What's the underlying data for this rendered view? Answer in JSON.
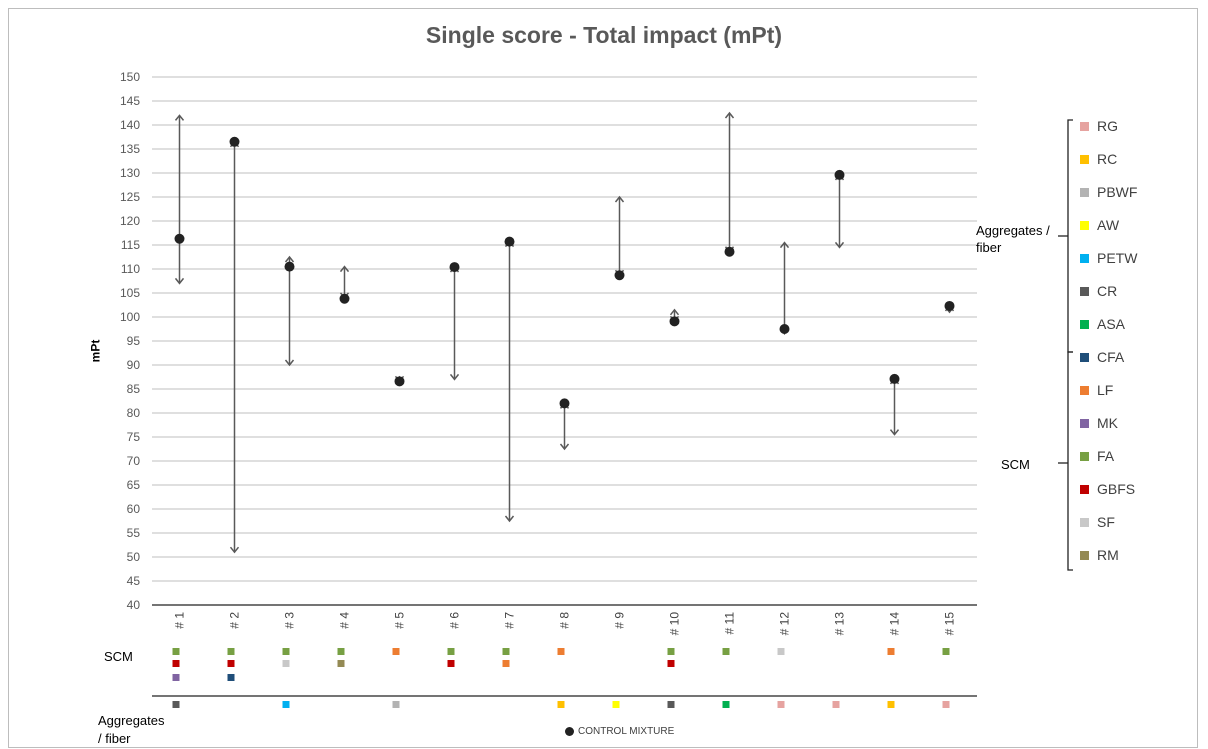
{
  "chart_data": {
    "type": "scatter",
    "title": "Single score - Total impact (mPt)",
    "ylabel": "mPt",
    "xlabel": "",
    "ylim": [
      40,
      150
    ],
    "ytick_step": 5,
    "grid": true,
    "categories": [
      "# 1",
      "# 2",
      "# 3",
      "# 4",
      "# 5",
      "# 6",
      "# 7",
      "# 8",
      "# 9",
      "# 10",
      "# 11",
      "# 12",
      "# 13",
      "# 14",
      "# 15"
    ],
    "control": [
      116.3,
      136.5,
      110.5,
      103.8,
      86.6,
      110.4,
      115.7,
      82.0,
      108.7,
      99.1,
      113.6,
      97.5,
      129.6,
      87.1,
      102.3
    ],
    "ranges": [
      {
        "low": 107,
        "high": 142
      },
      {
        "low": 51,
        "high": 136.5
      },
      {
        "low": 90,
        "high": 112.5
      },
      {
        "low": 104,
        "high": 110.5
      },
      {
        "low": 86.6,
        "high": 87.5
      },
      {
        "low": 87,
        "high": 110.4
      },
      {
        "low": 57.5,
        "high": 115.7
      },
      {
        "low": 72.5,
        "high": 82.0
      },
      {
        "low": 108.7,
        "high": 125
      },
      {
        "low": 99.1,
        "high": 101.5
      },
      {
        "low": 113.6,
        "high": 142.5
      },
      {
        "low": 96.5,
        "high": 115.5
      },
      {
        "low": 114.5,
        "high": 129.6
      },
      {
        "low": 75.5,
        "high": 87.1
      },
      {
        "low": 101,
        "high": 102.3
      }
    ],
    "scm_markers": [
      [
        "FA",
        "GBFS",
        "MK"
      ],
      [
        "FA",
        "GBFS",
        "CFA"
      ],
      [
        "FA",
        "SF"
      ],
      [
        "FA",
        "RM"
      ],
      [
        "LF"
      ],
      [
        "FA",
        "GBFS"
      ],
      [
        "FA",
        "LF"
      ],
      [
        "LF"
      ],
      [],
      [
        "FA",
        "GBFS"
      ],
      [
        "FA"
      ],
      [
        "SF"
      ],
      [],
      [
        "LF"
      ],
      [
        "FA"
      ]
    ],
    "aggregate_markers": [
      "CR",
      "",
      "PETW",
      "",
      "PBWF",
      "",
      "",
      "RC",
      "AW",
      "CR",
      "ASA",
      "RG",
      "RG",
      "RC",
      "RG"
    ],
    "legend": [
      {
        "label": "RG",
        "color": "#e6a3a0",
        "group": "Aggregates / fiber"
      },
      {
        "label": "RC",
        "color": "#ffc000",
        "group": "Aggregates / fiber"
      },
      {
        "label": "PBWF",
        "color": "#b3b3b3",
        "group": "Aggregates / fiber"
      },
      {
        "label": "AW",
        "color": "#ffff00",
        "group": "Aggregates / fiber"
      },
      {
        "label": "PETW",
        "color": "#00b0f0",
        "group": "Aggregates / fiber"
      },
      {
        "label": "CR",
        "color": "#595959",
        "group": "Aggregates / fiber"
      },
      {
        "label": "ASA",
        "color": "#00b050",
        "group": "Aggregates / fiber"
      },
      {
        "label": "CFA",
        "color": "#1f4e79",
        "group": "SCM"
      },
      {
        "label": "LF",
        "color": "#ed7d31",
        "group": "SCM"
      },
      {
        "label": "MK",
        "color": "#8064a2",
        "group": "SCM"
      },
      {
        "label": "FA",
        "color": "#77a043",
        "group": "SCM"
      },
      {
        "label": "GBFS",
        "color": "#c00000",
        "group": "SCM"
      },
      {
        "label": "SF",
        "color": "#c8c8c8",
        "group": "SCM"
      },
      {
        "label": "RM",
        "color": "#948a54",
        "group": "SCM"
      }
    ],
    "legend_groups": {
      "aggregates": "Aggregates / fiber",
      "scm": "SCM"
    },
    "row_labels": {
      "scm": "SCM",
      "aggregates": "Aggregates / fiber"
    },
    "footnote": "CONTROL MIXTURE"
  }
}
